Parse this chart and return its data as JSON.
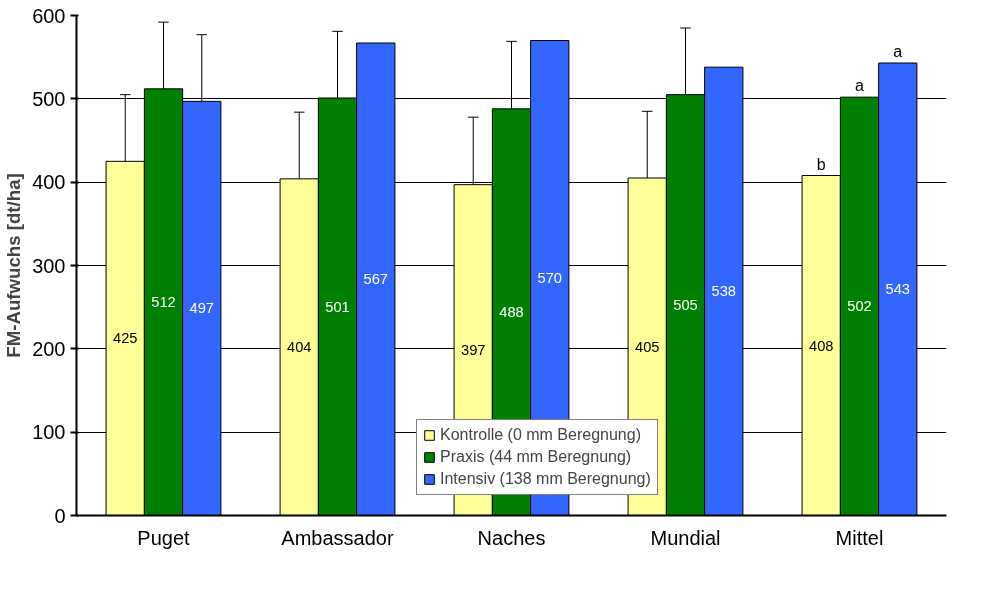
{
  "chart_data": {
    "type": "bar",
    "ylabel": "FM-Aufwuchs [dt/ha]",
    "categories": [
      "Puget",
      "Ambassador",
      "Naches",
      "Mundial",
      "Mittel"
    ],
    "series": [
      {
        "name": "Kontrolle (0 mm Beregnung)",
        "color": "#ffff99",
        "values": [
          425,
          404,
          397,
          405,
          408
        ],
        "errors": [
          [
            425,
            505
          ],
          [
            404,
            484
          ],
          [
            397,
            478
          ],
          [
            405,
            485
          ],
          null
        ]
      },
      {
        "name": "Praxis (44 mm Beregnung)",
        "color": "#008000",
        "values": [
          512,
          501,
          488,
          505,
          502
        ],
        "errors": [
          [
            512,
            592
          ],
          [
            501,
            581
          ],
          [
            488,
            569
          ],
          [
            505,
            585
          ],
          null
        ]
      },
      {
        "name": "Intensiv (138 mm Beregnung)",
        "color": "#3366ff",
        "values": [
          497,
          567,
          570,
          538,
          543
        ],
        "errors": [
          [
            497,
            577
          ],
          null,
          null,
          null,
          null
        ]
      }
    ],
    "ylim": [
      0,
      600
    ],
    "yticks": [
      0,
      100,
      200,
      300,
      400,
      500,
      600
    ],
    "grid": "y",
    "legend": "bottom",
    "data_labels": true,
    "annotations": [
      "b",
      "a",
      "a"
    ]
  }
}
